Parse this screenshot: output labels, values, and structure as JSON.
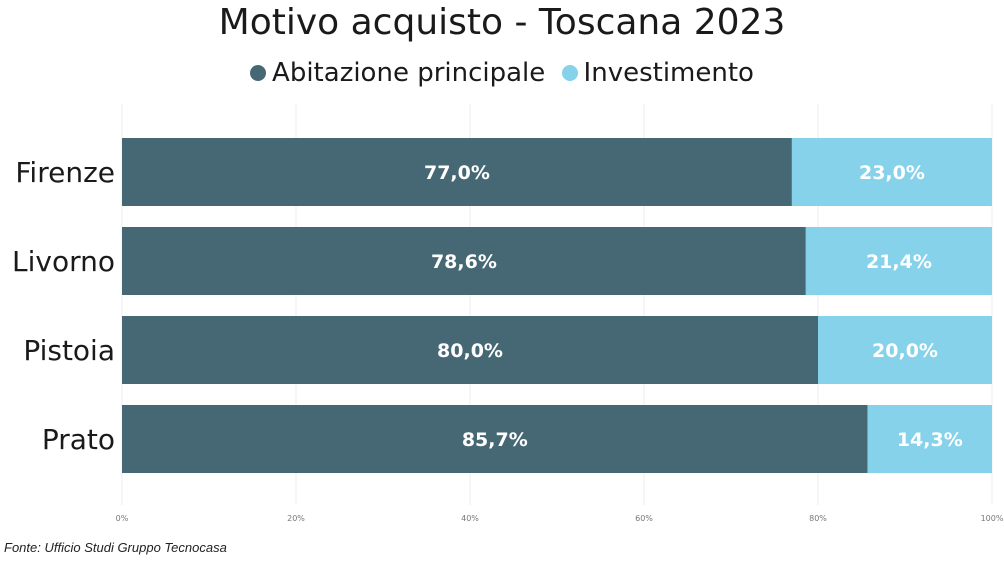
{
  "chart_data": {
    "type": "bar",
    "orientation": "horizontal",
    "stacked": true,
    "title": "Motivo acquisto - Toscana 2023",
    "categories": [
      "Firenze",
      "Livorno",
      "Pistoia",
      "Prato"
    ],
    "series": [
      {
        "name": "Abitazione principale",
        "color": "#466875",
        "values": [
          77.0,
          78.6,
          80.0,
          85.7
        ],
        "labels": [
          "77,0%",
          "78,6%",
          "80,0%",
          "85,7%"
        ]
      },
      {
        "name": "Investimento",
        "color": "#86d2ea",
        "values": [
          23.0,
          21.4,
          20.0,
          14.3
        ],
        "labels": [
          "23,0%",
          "21,4%",
          "20,0%",
          "14,3%"
        ]
      }
    ],
    "xlim": [
      0,
      100
    ],
    "xticks": [
      0,
      20,
      40,
      60,
      80,
      100
    ],
    "xtick_labels": [
      "0%",
      "20%",
      "40%",
      "60%",
      "80%",
      "100%"
    ],
    "grid": true,
    "legend_position": "top"
  },
  "source": "Fonte: Ufficio Studi Gruppo Tecnocasa"
}
